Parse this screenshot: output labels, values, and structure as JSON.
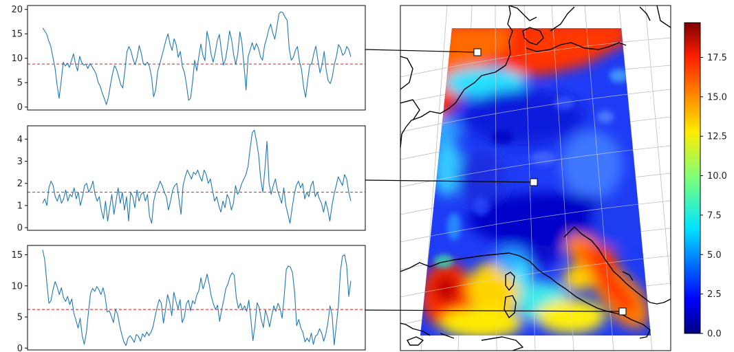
{
  "chart_data": [
    {
      "type": "line",
      "title": "",
      "xlabel": "",
      "ylabel": "",
      "ylim": [
        -0.6,
        20.8
      ],
      "yticks": [
        0,
        5,
        10,
        15,
        20
      ],
      "yticklabels": [
        "0",
        "5",
        "10",
        "15",
        "20"
      ],
      "threshold": 8.8,
      "threshold_style": "red dashed",
      "grid": false,
      "series": [
        {
          "color": "#1f77b4",
          "values": [
            16.2,
            15.6,
            14.9,
            13.5,
            12.4,
            10.2,
            8.1,
            4.6,
            1.8,
            5.2,
            9.2,
            8.4,
            9.0,
            8.1,
            9.5,
            10.9,
            8.8,
            7.4,
            10.4,
            9.2,
            8.6,
            8.8,
            7.9,
            8.9,
            8.3,
            7.6,
            6.8,
            5.1,
            4.3,
            2.9,
            1.8,
            0.5,
            2.0,
            4.6,
            6.8,
            8.5,
            7.7,
            6.2,
            4.6,
            3.9,
            7.4,
            11.3,
            12.4,
            11.5,
            9.8,
            8.7,
            10.2,
            12.6,
            11.0,
            8.9,
            8.6,
            9.2,
            8.3,
            6.2,
            2.1,
            3.5,
            7.4,
            8.8,
            10.4,
            12.0,
            13.7,
            15.0,
            12.9,
            11.6,
            14.0,
            12.8,
            10.2,
            11.4,
            8.3,
            7.1,
            4.6,
            1.4,
            1.8,
            5.2,
            9.6,
            7.4,
            10.3,
            12.9,
            10.6,
            9.5,
            15.5,
            13.7,
            10.8,
            9.2,
            11.2,
            13.6,
            14.9,
            11.6,
            8.6,
            9.8,
            12.4,
            15.6,
            13.7,
            10.6,
            8.7,
            11.0,
            15.4,
            13.1,
            8.5,
            3.5,
            10.4,
            11.7,
            13.2,
            11.7,
            13.0,
            12.1,
            10.3,
            9.6,
            12.6,
            14.0,
            15.8,
            17.0,
            15.2,
            13.9,
            16.4,
            19.1,
            19.5,
            19.3,
            18.4,
            17.8,
            12.0,
            9.6,
            10.2,
            11.6,
            12.4,
            9.4,
            7.7,
            4.1,
            2.0,
            5.5,
            8.6,
            9.0,
            11.0,
            12.5,
            9.5,
            7.0,
            8.7,
            11.4,
            7.6,
            5.4,
            4.8,
            6.2,
            8.8,
            10.4,
            12.8,
            12.1,
            10.6,
            11.0,
            12.4,
            11.8,
            10.3
          ]
        }
      ]
    },
    {
      "type": "line",
      "title": "",
      "xlabel": "",
      "ylabel": "",
      "ylim": [
        -0.12,
        4.6
      ],
      "yticks": [
        0,
        1,
        2,
        3,
        4
      ],
      "yticklabels": [
        "0",
        "1",
        "2",
        "3",
        "4"
      ],
      "threshold": 1.6,
      "threshold_style": "red dashed",
      "grid": false,
      "series": [
        {
          "color": "#1f77b4",
          "values": [
            1.1,
            1.3,
            1.0,
            1.8,
            2.1,
            1.9,
            1.4,
            1.2,
            1.5,
            1.1,
            1.3,
            1.7,
            1.2,
            1.5,
            1.4,
            1.8,
            1.3,
            1.6,
            1.0,
            1.4,
            1.9,
            2.0,
            1.6,
            1.8,
            2.1,
            1.5,
            1.2,
            1.4,
            0.8,
            0.4,
            1.2,
            0.3,
            0.9,
            1.5,
            0.6,
            1.2,
            1.8,
            1.1,
            1.6,
            0.8,
            1.4,
            0.3,
            1.6,
            1.4,
            0.9,
            1.7,
            1.2,
            1.5,
            1.6,
            1.2,
            1.5,
            0.5,
            0.2,
            1.2,
            1.6,
            1.8,
            2.1,
            1.9,
            1.6,
            1.4,
            0.8,
            1.2,
            1.7,
            1.9,
            2.0,
            1.3,
            0.6,
            1.9,
            2.3,
            2.6,
            2.4,
            2.2,
            2.5,
            2.4,
            2.6,
            2.3,
            2.1,
            2.6,
            2.4,
            2.0,
            2.2,
            1.7,
            1.2,
            1.4,
            1.0,
            0.7,
            1.2,
            0.9,
            1.5,
            1.3,
            0.8,
            1.1,
            1.9,
            1.5,
            1.7,
            2.0,
            2.2,
            2.4,
            2.8,
            3.6,
            4.3,
            4.4,
            3.9,
            3.3,
            2.2,
            1.6,
            2.6,
            3.9,
            2.0,
            1.5,
            1.9,
            2.2,
            1.7,
            1.4,
            1.1,
            1.8,
            1.0,
            0.6,
            0.2,
            0.9,
            1.5,
            1.9,
            2.1,
            1.8,
            2.0,
            1.3,
            1.6,
            1.4,
            1.9,
            2.1,
            1.4,
            1.6,
            1.3,
            1.1,
            0.7,
            1.2,
            0.8,
            0.3,
            1.0,
            1.5,
            1.9,
            2.3,
            2.1,
            1.9,
            2.4,
            2.2,
            1.6,
            1.2
          ]
        }
      ]
    },
    {
      "type": "line",
      "title": "",
      "xlabel": "",
      "ylabel": "",
      "ylim": [
        -0.3,
        16.5
      ],
      "yticks": [
        0,
        5,
        10,
        15
      ],
      "yticklabels": [
        "0",
        "5",
        "10",
        "15"
      ],
      "threshold": 6.2,
      "threshold_style": "red dashed",
      "grid": false,
      "series": [
        {
          "color": "#1f77b4",
          "values": [
            15.8,
            14.2,
            10.5,
            7.2,
            7.6,
            9.4,
            10.7,
            9.8,
            8.6,
            9.7,
            8.1,
            7.5,
            8.3,
            7.0,
            7.9,
            5.6,
            4.5,
            3.2,
            4.8,
            2.0,
            0.6,
            2.5,
            5.8,
            8.8,
            9.6,
            9.1,
            9.9,
            9.4,
            8.6,
            9.7,
            8.3,
            5.8,
            6.0,
            5.1,
            4.1,
            6.3,
            5.4,
            3.6,
            2.2,
            1.0,
            0.4,
            1.6,
            2.0,
            1.5,
            0.9,
            2.2,
            1.9,
            1.1,
            2.3,
            1.8,
            2.6,
            2.0,
            2.5,
            3.4,
            5.1,
            6.6,
            7.8,
            7.2,
            4.0,
            6.1,
            8.6,
            7.4,
            5.2,
            9.0,
            7.6,
            6.3,
            7.8,
            4.1,
            4.9,
            7.1,
            7.7,
            6.0,
            7.6,
            7.1,
            8.5,
            9.2,
            11.3,
            9.5,
            10.6,
            11.9,
            10.2,
            8.3,
            7.1,
            6.2,
            6.9,
            4.3,
            6.2,
            7.8,
            9.6,
            10.3,
            11.5,
            12.1,
            11.7,
            8.1,
            6.4,
            7.2,
            6.1,
            6.8,
            5.9,
            7.7,
            4.6,
            1.2,
            3.8,
            7.3,
            6.5,
            4.6,
            3.3,
            6.1,
            5.0,
            3.4,
            5.2,
            6.8,
            5.9,
            7.2,
            6.4,
            4.8,
            8.3,
            12.7,
            13.2,
            13.0,
            12.1,
            8.9,
            3.6,
            4.6,
            3.2,
            2.5,
            1.0,
            1.6,
            1.0,
            2.4,
            0.6,
            1.9,
            2.2,
            3.1,
            2.4,
            1.1,
            2.3,
            4.1,
            6.8,
            5.3,
            0.5,
            3.6,
            6.7,
            12.4,
            14.8,
            15.0,
            13.3,
            8.3,
            10.8
          ]
        }
      ]
    },
    {
      "type": "heatmap",
      "title": "",
      "colorbar": {
        "colormap": "jet",
        "range": [
          0,
          19.7
        ],
        "ticks": [
          0.0,
          2.5,
          5.0,
          7.5,
          10.0,
          12.5,
          15.0,
          17.5
        ],
        "ticklabels": [
          "0.0",
          "2.5",
          "5.0",
          "7.5",
          "10.0",
          "12.5",
          "15.0",
          "17.5"
        ],
        "position": "right"
      },
      "map_grid": true,
      "markers": [
        {
          "style": "white square"
        },
        {
          "style": "white square"
        },
        {
          "style": "white square"
        }
      ]
    }
  ]
}
